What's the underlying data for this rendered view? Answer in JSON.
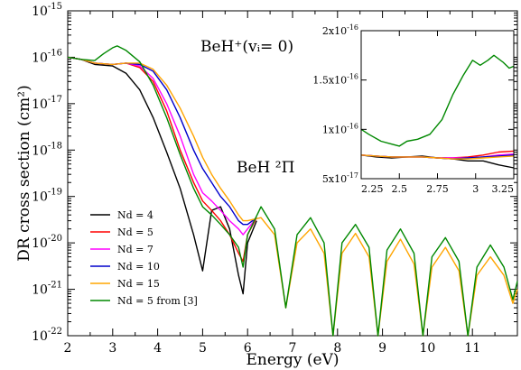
{
  "chart_data": [
    {
      "type": "line",
      "xlabel": "Energy (eV)",
      "ylabel": "DR cross section (cm²)",
      "xlim": [
        2,
        12
      ],
      "ylim": [
        1e-22,
        1e-15
      ],
      "yscale": "log",
      "xticks": [
        2,
        3,
        4,
        5,
        6,
        7,
        8,
        9,
        10,
        11
      ],
      "xtick_labels": [
        "2",
        "3",
        "4",
        "5",
        "6",
        "7",
        "8",
        "9",
        "10",
        "11"
      ],
      "yticks": [
        1e-22,
        1e-21,
        1e-20,
        1e-19,
        1e-18,
        1e-17,
        1e-16,
        1e-15
      ],
      "ytick_exponents": [
        "-22",
        "-21",
        "-20",
        "-19",
        "-18",
        "-17",
        "-16",
        "-15"
      ],
      "ytick_base": "10",
      "annotations": [
        {
          "text": "BeH⁺(vᵢ= 0)"
        },
        {
          "text": "BeH ²Π"
        }
      ],
      "legend_position": "lower-left",
      "series": [
        {
          "name": "Nd = 4",
          "color": "#000000",
          "x": [
            2,
            2.3,
            2.6,
            3,
            3.3,
            3.6,
            3.9,
            4.2,
            4.5,
            4.8,
            5.0,
            5.2,
            5.4,
            5.6,
            5.8,
            5.9,
            6.0,
            6.2
          ],
          "y": [
            1e-16,
            9e-17,
            7e-17,
            6.5e-17,
            4.5e-17,
            2e-17,
            5e-18,
            9e-19,
            1.5e-19,
            1.5e-20,
            2.5e-21,
            5e-20,
            6e-20,
            2e-20,
            2e-21,
            8e-22,
            1e-20,
            3e-20
          ]
        },
        {
          "name": "Nd = 5",
          "color": "#ff0000",
          "x": [
            2,
            2.3,
            2.6,
            3,
            3.3,
            3.6,
            3.9,
            4.2,
            4.5,
            4.8,
            5.0,
            5.2,
            5.4,
            5.6,
            5.8,
            5.9,
            6.0,
            6.2
          ],
          "y": [
            1e-16,
            9e-17,
            7.5e-17,
            7e-17,
            7.5e-17,
            6e-17,
            3e-17,
            7e-18,
            1e-18,
            2e-19,
            8e-20,
            5e-20,
            3e-20,
            1.5e-20,
            6e-21,
            4e-21,
            1.5e-20,
            3.5e-20
          ]
        },
        {
          "name": "Nd = 7",
          "color": "#ff00ff",
          "x": [
            2,
            2.3,
            2.6,
            3,
            3.3,
            3.6,
            3.9,
            4.2,
            4.5,
            4.8,
            5.0,
            5.2,
            5.4,
            5.6,
            5.8,
            5.9,
            6.0,
            6.2
          ],
          "y": [
            1e-16,
            9e-17,
            7.5e-17,
            7e-17,
            7.5e-17,
            6.5e-17,
            3.5e-17,
            1e-17,
            2e-18,
            3e-19,
            1.2e-19,
            8e-20,
            5e-20,
            3e-20,
            2e-20,
            1.5e-20,
            2e-20,
            3.5e-20
          ]
        },
        {
          "name": "Nd = 10",
          "color": "#0000cc",
          "x": [
            2,
            2.3,
            2.6,
            3,
            3.3,
            3.6,
            3.9,
            4.2,
            4.5,
            4.8,
            5.0,
            5.2,
            5.4,
            5.6,
            5.8,
            5.9,
            6.0,
            6.2
          ],
          "y": [
            1e-16,
            9e-17,
            7.5e-17,
            7e-17,
            7.5e-17,
            7e-17,
            5e-17,
            2e-17,
            5e-18,
            1e-18,
            4e-19,
            2e-19,
            1e-19,
            6e-20,
            3e-20,
            2.5e-20,
            2.5e-20,
            3.5e-20
          ]
        },
        {
          "name": "Nd = 15",
          "color": "#ffa500",
          "x": [
            2,
            2.3,
            2.6,
            3,
            3.3,
            3.6,
            3.9,
            4.2,
            4.5,
            4.8,
            5.0,
            5.2,
            5.4,
            5.6,
            5.8,
            5.9,
            6.0,
            6.3,
            6.6,
            6.85,
            7.1,
            7.4,
            7.7,
            7.9,
            8.1,
            8.4,
            8.7,
            8.9,
            9.1,
            9.4,
            9.7,
            9.9,
            10.1,
            10.4,
            10.7,
            10.9,
            11.1,
            11.4,
            11.7,
            11.9,
            12
          ],
          "y": [
            1e-16,
            9e-17,
            7.5e-17,
            7e-17,
            7.5e-17,
            7.5e-17,
            5.5e-17,
            2.5e-17,
            8e-18,
            2e-18,
            7e-19,
            3e-19,
            1.5e-19,
            8e-20,
            4e-20,
            3e-20,
            3e-20,
            3.5e-20,
            1.5e-20,
            4e-22,
            1e-20,
            2e-20,
            6e-21,
            1e-22,
            6e-21,
            1.6e-20,
            5e-21,
            1e-22,
            4e-21,
            1.2e-20,
            3.5e-21,
            1e-22,
            3e-21,
            8e-21,
            2.5e-21,
            1e-22,
            2e-21,
            5e-21,
            2e-21,
            5e-22,
            1e-21
          ]
        },
        {
          "name": "Nd = 5 from [3]",
          "color": "#008800",
          "x": [
            2,
            2.3,
            2.6,
            2.8,
            3,
            3.1,
            3.3,
            3.6,
            3.9,
            4.2,
            4.5,
            4.8,
            5.0,
            5.2,
            5.4,
            5.6,
            5.8,
            5.9,
            6.0,
            6.3,
            6.6,
            6.85,
            7.1,
            7.4,
            7.7,
            7.9,
            8.1,
            8.4,
            8.7,
            8.9,
            9.1,
            9.4,
            9.7,
            9.9,
            10.1,
            10.4,
            10.7,
            10.9,
            11.1,
            11.4,
            11.7,
            11.9,
            12
          ],
          "y": [
            1e-16,
            9e-17,
            8.5e-17,
            1.2e-16,
            1.6e-16,
            1.75e-16,
            1.4e-16,
            8e-17,
            2.5e-17,
            5e-18,
            8e-19,
            1.5e-19,
            6e-20,
            4e-20,
            2.5e-20,
            1.5e-20,
            8e-21,
            3e-21,
            1.5e-20,
            6e-20,
            2e-20,
            4e-22,
            1.5e-20,
            3.5e-20,
            1e-20,
            1e-22,
            1e-20,
            2.5e-20,
            8e-21,
            1e-22,
            7e-21,
            2e-20,
            6e-21,
            1e-22,
            5e-21,
            1.3e-20,
            4e-21,
            1e-22,
            3e-21,
            9e-21,
            3e-21,
            6e-22,
            1.5e-21
          ]
        }
      ]
    },
    {
      "type": "line",
      "xlim": [
        2.25,
        3.25
      ],
      "ylim": [
        5e-17,
        2e-16
      ],
      "yscale": "linear",
      "xticks": [
        2.25,
        2.5,
        2.75,
        3,
        3.25
      ],
      "xtick_labels": [
        "2.25",
        "2.5",
        "2.75",
        "3",
        "3.25"
      ],
      "yticks": [
        5e-17,
        1e-16,
        1.5e-16,
        2e-16
      ],
      "ytick_labels": [
        {
          "mant": "5x10",
          "exp": "-17"
        },
        {
          "mant": "1x10",
          "exp": "-16"
        },
        {
          "mant": "1.5x10",
          "exp": "-16"
        },
        {
          "mant": "2x10",
          "exp": "-16"
        }
      ],
      "series": [
        {
          "name": "Nd = 4",
          "color": "#000000",
          "x": [
            2.25,
            2.35,
            2.45,
            2.55,
            2.65,
            2.75,
            2.85,
            2.95,
            3.05,
            3.15,
            3.25
          ],
          "y": [
            7.4e-17,
            7.2e-17,
            7.1e-17,
            7.2e-17,
            7.3e-17,
            7.1e-17,
            7e-17,
            6.8e-17,
            6.8e-17,
            6.4e-17,
            6.1e-17
          ]
        },
        {
          "name": "Nd = 5",
          "color": "#ff0000",
          "x": [
            2.25,
            2.35,
            2.45,
            2.55,
            2.65,
            2.75,
            2.85,
            2.95,
            3.05,
            3.15,
            3.25
          ],
          "y": [
            7.4e-17,
            7.3e-17,
            7.2e-17,
            7.2e-17,
            7.2e-17,
            7.1e-17,
            7.1e-17,
            7.2e-17,
            7.4e-17,
            7.7e-17,
            7.8e-17
          ]
        },
        {
          "name": "Nd = 7",
          "color": "#ff00ff",
          "x": [
            2.25,
            2.35,
            2.45,
            2.55,
            2.65,
            2.75,
            2.85,
            2.95,
            3.05,
            3.15,
            3.25
          ],
          "y": [
            7.4e-17,
            7.3e-17,
            7.2e-17,
            7.2e-17,
            7.2e-17,
            7.1e-17,
            7.1e-17,
            7.1e-17,
            7.2e-17,
            7.4e-17,
            7.5e-17
          ]
        },
        {
          "name": "Nd = 10",
          "color": "#0000cc",
          "x": [
            2.25,
            2.35,
            2.45,
            2.55,
            2.65,
            2.75,
            2.85,
            2.95,
            3.05,
            3.15,
            3.25
          ],
          "y": [
            7.4e-17,
            7.3e-17,
            7.2e-17,
            7.2e-17,
            7.2e-17,
            7.1e-17,
            7e-17,
            7.1e-17,
            7.2e-17,
            7.3e-17,
            7.4e-17
          ]
        },
        {
          "name": "Nd = 15",
          "color": "#ffa500",
          "x": [
            2.25,
            2.35,
            2.45,
            2.55,
            2.65,
            2.75,
            2.85,
            2.95,
            3.05,
            3.15,
            3.25
          ],
          "y": [
            7.4e-17,
            7.3e-17,
            7.2e-17,
            7.2e-17,
            7.2e-17,
            7.1e-17,
            7e-17,
            7e-17,
            7.1e-17,
            7.2e-17,
            7.3e-17
          ]
        },
        {
          "name": "Nd = 5 from [3]",
          "color": "#008800",
          "x": [
            2.25,
            2.3,
            2.38,
            2.45,
            2.5,
            2.55,
            2.62,
            2.7,
            2.78,
            2.85,
            2.92,
            2.98,
            3.03,
            3.08,
            3.12,
            3.18,
            3.22,
            3.25
          ],
          "y": [
            1e-16,
            9.5e-17,
            8.8e-17,
            8.5e-17,
            8.3e-17,
            8.8e-17,
            9e-17,
            9.5e-17,
            1.1e-16,
            1.35e-16,
            1.55e-16,
            1.7e-16,
            1.65e-16,
            1.7e-16,
            1.75e-16,
            1.68e-16,
            1.62e-16,
            1.64e-16
          ]
        }
      ]
    }
  ]
}
